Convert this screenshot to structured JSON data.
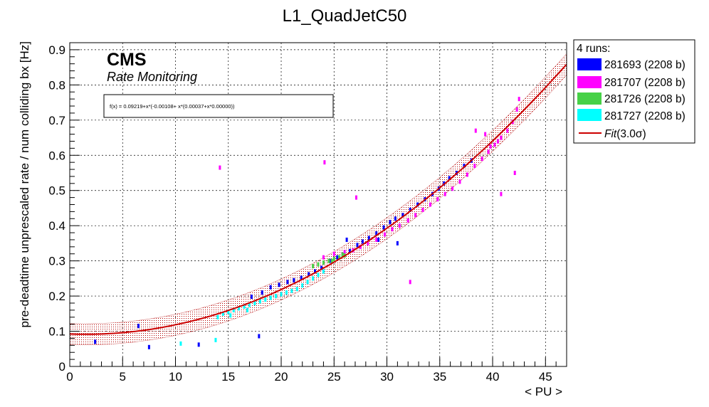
{
  "title": "L1_QuadJetC50",
  "xlabel": "< PU >",
  "ylabel": "pre-deadtime unprescaled rate / num colliding bx [Hz]",
  "cms_label": "CMS",
  "cms_sublabel": "Rate Monitoring",
  "fit_formula": "f(x) = 0.09219+x*(-0.00108+ x*(0.00037+x*0.00000))",
  "legend": {
    "header": "4 runs:",
    "fit_label_prefix": "Fit",
    "fit_label_suffix": "(3.0σ)",
    "entries": [
      {
        "label": "281693 (2208 b)",
        "color": "#0000ff"
      },
      {
        "label": "281707 (2208 b)",
        "color": "#ff00ff"
      },
      {
        "label": "281726 (2208 b)",
        "color": "#47d147"
      },
      {
        "label": "281727 (2208 b)",
        "color": "#00ffff"
      }
    ]
  },
  "chart_data": {
    "type": "scatter",
    "title": "L1_QuadJetC50",
    "xlabel": "< PU >",
    "ylabel": "pre-deadtime unprescaled rate / num colliding bx [Hz]",
    "xlim": [
      0,
      47
    ],
    "ylim": [
      0,
      0.92
    ],
    "xticks": [
      0,
      5,
      10,
      15,
      20,
      25,
      30,
      35,
      40,
      45
    ],
    "yticks": [
      0,
      0.1,
      0.2,
      0.3,
      0.4,
      0.5,
      0.6,
      0.7,
      0.8,
      0.9
    ],
    "grid": true,
    "legend_position": "outside-top-right",
    "fit": {
      "label": "Fit(3.0σ)",
      "color": "#cc0000",
      "coefficients": [
        0.09219,
        -0.00108,
        0.00037,
        0.0
      ],
      "band_sigma": 3.0,
      "band_halfwidth": 0.03,
      "x_range": [
        0,
        47
      ]
    },
    "series": [
      {
        "name": "281693 (2208 b)",
        "color": "#0000ff",
        "points": [
          [
            2.4,
            0.07
          ],
          [
            6.5,
            0.115
          ],
          [
            7.5,
            0.055
          ],
          [
            12.2,
            0.062
          ],
          [
            17.9,
            0.086
          ],
          [
            17.2,
            0.198
          ],
          [
            18.2,
            0.21
          ],
          [
            19.0,
            0.225
          ],
          [
            19.8,
            0.232
          ],
          [
            20.6,
            0.24
          ],
          [
            21.2,
            0.245
          ],
          [
            21.9,
            0.252
          ],
          [
            22.6,
            0.262
          ],
          [
            23.2,
            0.27
          ],
          [
            23.8,
            0.28
          ],
          [
            24.6,
            0.3
          ],
          [
            25.3,
            0.31
          ],
          [
            25.8,
            0.318
          ],
          [
            26.5,
            0.328
          ],
          [
            27.2,
            0.345
          ],
          [
            27.7,
            0.355
          ],
          [
            28.3,
            0.365
          ],
          [
            29.0,
            0.378
          ],
          [
            29.7,
            0.395
          ],
          [
            30.3,
            0.41
          ],
          [
            30.8,
            0.42
          ],
          [
            31.5,
            0.43
          ],
          [
            32.2,
            0.445
          ],
          [
            32.9,
            0.46
          ],
          [
            33.6,
            0.475
          ],
          [
            34.3,
            0.49
          ],
          [
            34.9,
            0.505
          ],
          [
            35.4,
            0.52
          ],
          [
            35.9,
            0.535
          ],
          [
            36.6,
            0.55
          ],
          [
            37.3,
            0.57
          ],
          [
            38.0,
            0.585
          ],
          [
            31.0,
            0.35
          ],
          [
            26.2,
            0.36
          ],
          [
            29.2,
            0.36
          ]
        ]
      },
      {
        "name": "281707 (2208 b)",
        "color": "#ff00ff",
        "points": [
          [
            14.2,
            0.565
          ],
          [
            24.1,
            0.58
          ],
          [
            27.1,
            0.48
          ],
          [
            32.2,
            0.24
          ],
          [
            40.8,
            0.49
          ],
          [
            42.1,
            0.55
          ],
          [
            38.4,
            0.67
          ],
          [
            39.3,
            0.66
          ],
          [
            24.0,
            0.31
          ],
          [
            25.0,
            0.32
          ],
          [
            26.0,
            0.325
          ],
          [
            26.8,
            0.33
          ],
          [
            27.5,
            0.34
          ],
          [
            28.2,
            0.35
          ],
          [
            29.0,
            0.36
          ],
          [
            29.8,
            0.375
          ],
          [
            30.5,
            0.39
          ],
          [
            31.2,
            0.4
          ],
          [
            32.0,
            0.415
          ],
          [
            32.7,
            0.43
          ],
          [
            33.4,
            0.445
          ],
          [
            34.1,
            0.46
          ],
          [
            34.8,
            0.475
          ],
          [
            35.5,
            0.49
          ],
          [
            36.2,
            0.505
          ],
          [
            36.9,
            0.525
          ],
          [
            37.6,
            0.545
          ],
          [
            38.3,
            0.57
          ],
          [
            39.0,
            0.59
          ],
          [
            39.6,
            0.61
          ],
          [
            40.2,
            0.63
          ],
          [
            40.8,
            0.65
          ],
          [
            41.4,
            0.67
          ],
          [
            41.9,
            0.695
          ],
          [
            42.3,
            0.73
          ],
          [
            42.5,
            0.76
          ],
          [
            40.5,
            0.64
          ],
          [
            39.8,
            0.625
          ]
        ]
      },
      {
        "name": "281726 (2208 b)",
        "color": "#47d147",
        "points": [
          [
            23.0,
            0.285
          ],
          [
            23.5,
            0.29
          ],
          [
            24.0,
            0.295
          ],
          [
            24.5,
            0.3
          ],
          [
            25.0,
            0.305
          ],
          [
            25.5,
            0.31
          ],
          [
            26.0,
            0.315
          ],
          [
            24.8,
            0.3
          ],
          [
            25.8,
            0.318
          ]
        ]
      },
      {
        "name": "281727 (2208 b)",
        "color": "#00ffff",
        "points": [
          [
            10.5,
            0.065
          ],
          [
            13.8,
            0.075
          ],
          [
            14.0,
            0.14
          ],
          [
            14.5,
            0.15
          ],
          [
            15.0,
            0.155
          ],
          [
            15.5,
            0.16
          ],
          [
            16.0,
            0.165
          ],
          [
            16.5,
            0.17
          ],
          [
            17.0,
            0.175
          ],
          [
            17.5,
            0.18
          ],
          [
            18.0,
            0.185
          ],
          [
            18.5,
            0.19
          ],
          [
            19.0,
            0.195
          ],
          [
            19.5,
            0.2
          ],
          [
            20.0,
            0.205
          ],
          [
            20.5,
            0.21
          ],
          [
            21.0,
            0.215
          ],
          [
            21.5,
            0.22
          ],
          [
            22.0,
            0.23
          ],
          [
            22.5,
            0.24
          ],
          [
            23.0,
            0.25
          ],
          [
            23.5,
            0.26
          ],
          [
            24.0,
            0.27
          ],
          [
            15.2,
            0.145
          ],
          [
            16.8,
            0.16
          ]
        ]
      }
    ]
  }
}
